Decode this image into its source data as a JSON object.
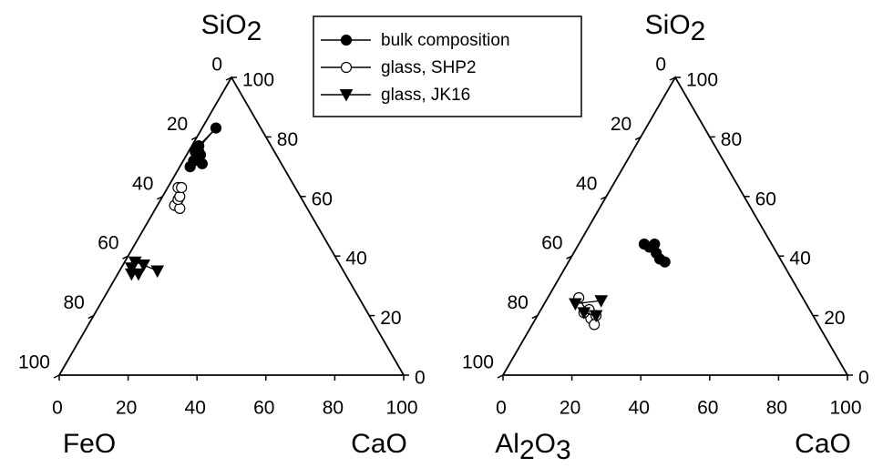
{
  "legend": {
    "entries": [
      {
        "label": "bulk composition",
        "marker": "filled-circle"
      },
      {
        "label": "glass, SHP2",
        "marker": "open-circle"
      },
      {
        "label": "glass, JK16",
        "marker": "filled-triangle-down"
      }
    ]
  },
  "chart_data": [
    {
      "type": "scatter",
      "diagram": "ternary",
      "title": "",
      "vertices": {
        "top": {
          "main": "SiO",
          "sub": "2"
        },
        "left": {
          "main": "FeO"
        },
        "right": {
          "main": "CaO"
        }
      },
      "tick_labels": [
        "0",
        "20",
        "40",
        "60",
        "80",
        "100"
      ],
      "series": [
        {
          "name": "bulk composition",
          "marker": "filled-circle",
          "points": [
            [
              21,
              2,
              77
            ],
            [
              13,
              4,
              83
            ],
            [
              22,
              4,
              74
            ],
            [
              22,
              3,
              75
            ],
            [
              23,
              6,
              71
            ],
            [
              27,
              3,
              70
            ],
            [
              23,
              3,
              74
            ],
            [
              25,
              3,
              72
            ],
            [
              22,
              4,
              74
            ],
            [
              21,
              2,
              77
            ],
            [
              22,
              3,
              75
            ],
            [
              22,
              2,
              76
            ],
            [
              23,
              2,
              75
            ]
          ],
          "paths": [
            [
              0,
              1
            ],
            [
              2,
              3
            ],
            [
              4,
              5
            ],
            [
              6,
              7
            ],
            [
              8,
              9
            ],
            [
              10,
              11
            ],
            [
              12,
              1
            ]
          ]
        },
        {
          "name": "glass, SHP2",
          "marker": "open-circle",
          "points": [
            [
              38,
              5,
              57
            ],
            [
              37,
              7,
              56
            ],
            [
              36,
              5,
              59
            ],
            [
              35,
              5,
              60
            ],
            [
              34,
              3,
              63
            ],
            [
              33,
              4,
              63
            ]
          ],
          "paths": [
            [
              0,
              1,
              2
            ],
            [
              3,
              4,
              5
            ]
          ]
        },
        {
          "name": "glass, JK16",
          "marker": "filled-triangle-down",
          "points": [
            [
              54,
              11,
              35
            ],
            [
              57,
              6,
              37
            ],
            [
              59,
              3,
              38
            ],
            [
              60,
              6,
              34
            ],
            [
              61,
              3,
              36
            ],
            [
              62,
              4,
              34
            ]
          ],
          "paths": [
            [
              0,
              1,
              2
            ],
            [
              3,
              4,
              5
            ]
          ]
        }
      ]
    },
    {
      "type": "scatter",
      "diagram": "ternary",
      "title": "",
      "vertices": {
        "top": {
          "main": "SiO",
          "sub": "2"
        },
        "left": {
          "main": "Al",
          "sub": "2",
          "main2": "O",
          "sub2": "3"
        },
        "right": {
          "main": "CaO"
        }
      },
      "tick_labels": [
        "0",
        "20",
        "40",
        "60",
        "80",
        "100"
      ],
      "series": [
        {
          "name": "bulk composition",
          "marker": "filled-circle",
          "points": [
            [
              34,
              22,
              44
            ],
            [
              34,
              28,
              38
            ],
            [
              35,
              24,
              41
            ],
            [
              35,
              26,
              39
            ],
            [
              36,
              21,
              43
            ],
            [
              37,
              19,
              44
            ]
          ],
          "paths": [
            [
              0,
              1
            ],
            [
              2,
              3
            ],
            [
              4,
              5
            ]
          ]
        },
        {
          "name": "glass, SHP2",
          "marker": "open-circle",
          "points": [
            [
              65,
              9,
              26
            ],
            [
              65,
              16,
              19
            ],
            [
              63,
              17,
              20
            ],
            [
              64,
              14,
              22
            ],
            [
              66,
              13,
              21
            ],
            [
              65,
              18,
              17
            ]
          ],
          "paths": [
            [
              0,
              1
            ],
            [
              2,
              3
            ],
            [
              4,
              5
            ]
          ]
        },
        {
          "name": "glass, JK16",
          "marker": "filled-triangle-down",
          "points": [
            [
              59,
              16,
              25
            ],
            [
              67,
              9,
              24
            ],
            [
              63,
              17,
              20
            ],
            [
              66,
              13,
              21
            ]
          ],
          "paths": [
            [
              0,
              1
            ],
            [
              2,
              3
            ]
          ]
        }
      ]
    }
  ]
}
